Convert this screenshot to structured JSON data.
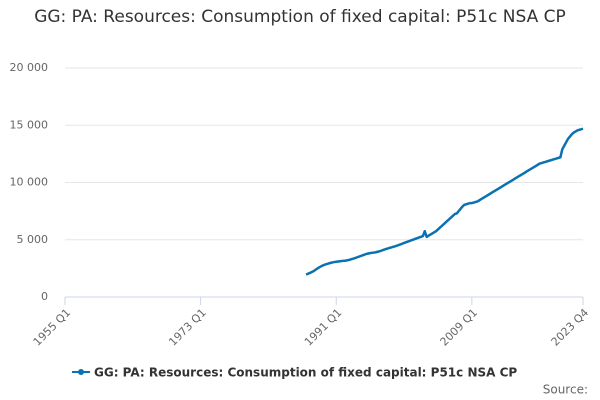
{
  "chart_data": {
    "type": "line",
    "title": "GG: PA: Resources: Consumption of fixed capital: P51c NSA CP",
    "source": "Source:",
    "x": [
      "1987 Q1",
      "1987 Q2",
      "1987 Q3",
      "1987 Q4",
      "1988 Q1",
      "1988 Q2",
      "1988 Q3",
      "1988 Q4",
      "1989 Q1",
      "1989 Q2",
      "1989 Q3",
      "1989 Q4",
      "1990 Q1",
      "1990 Q2",
      "1990 Q3",
      "1990 Q4",
      "1991 Q1",
      "1991 Q2",
      "1991 Q3",
      "1991 Q4",
      "1992 Q1",
      "1992 Q2",
      "1992 Q3",
      "1992 Q4",
      "1993 Q1",
      "1993 Q2",
      "1993 Q3",
      "1993 Q4",
      "1994 Q1",
      "1994 Q2",
      "1994 Q3",
      "1994 Q4",
      "1995 Q1",
      "1995 Q2",
      "1995 Q3",
      "1995 Q4",
      "1996 Q1",
      "1996 Q2",
      "1996 Q3",
      "1996 Q4",
      "1997 Q1",
      "1997 Q2",
      "1997 Q3",
      "1997 Q4",
      "1998 Q1",
      "1998 Q2",
      "1998 Q3",
      "1998 Q4",
      "1999 Q1",
      "1999 Q2",
      "1999 Q3",
      "1999 Q4",
      "2000 Q1",
      "2000 Q2",
      "2000 Q3",
      "2000 Q4",
      "2001 Q1",
      "2001 Q2",
      "2001 Q3",
      "2001 Q4",
      "2002 Q1",
      "2002 Q2",
      "2002 Q3",
      "2002 Q4",
      "2003 Q1",
      "2003 Q2",
      "2003 Q3",
      "2003 Q4",
      "2004 Q1",
      "2004 Q2",
      "2004 Q3",
      "2004 Q4",
      "2005 Q1",
      "2005 Q2",
      "2005 Q3",
      "2005 Q4",
      "2006 Q1",
      "2006 Q2",
      "2006 Q3",
      "2006 Q4",
      "2007 Q1",
      "2007 Q2",
      "2007 Q3",
      "2007 Q4",
      "2008 Q1",
      "2008 Q2",
      "2008 Q3",
      "2008 Q4",
      "2009 Q1",
      "2009 Q2",
      "2009 Q3",
      "2009 Q4",
      "2010 Q1",
      "2010 Q2",
      "2010 Q3",
      "2010 Q4",
      "2011 Q1",
      "2011 Q2",
      "2011 Q3",
      "2011 Q4",
      "2012 Q1",
      "2012 Q2",
      "2012 Q3",
      "2012 Q4",
      "2013 Q1",
      "2013 Q2",
      "2013 Q3",
      "2013 Q4",
      "2014 Q1",
      "2014 Q2",
      "2014 Q3",
      "2014 Q4",
      "2015 Q1",
      "2015 Q2",
      "2015 Q3",
      "2015 Q4",
      "2016 Q1",
      "2016 Q2",
      "2016 Q3",
      "2016 Q4",
      "2017 Q1",
      "2017 Q2",
      "2017 Q3",
      "2017 Q4",
      "2018 Q1",
      "2018 Q2",
      "2018 Q3",
      "2018 Q4",
      "2019 Q1",
      "2019 Q2",
      "2019 Q3",
      "2019 Q4",
      "2020 Q1",
      "2020 Q2",
      "2020 Q3",
      "2020 Q4",
      "2021 Q1",
      "2021 Q2",
      "2021 Q3",
      "2021 Q4",
      "2022 Q1",
      "2022 Q2",
      "2022 Q3",
      "2022 Q4",
      "2023 Q1",
      "2023 Q2",
      "2023 Q3",
      "2023 Q4"
    ],
    "series": [
      {
        "name": "GG: PA: Resources: Consumption of fixed capital: P51c NSA CP",
        "color": "#0a72b0",
        "values": [
          1950,
          2030,
          2100,
          2180,
          2260,
          2380,
          2490,
          2590,
          2680,
          2760,
          2830,
          2880,
          2930,
          2980,
          3020,
          3050,
          3080,
          3100,
          3120,
          3140,
          3160,
          3180,
          3210,
          3250,
          3300,
          3350,
          3400,
          3460,
          3520,
          3580,
          3640,
          3700,
          3760,
          3800,
          3830,
          3860,
          3880,
          3910,
          3950,
          3990,
          4050,
          4110,
          4170,
          4220,
          4270,
          4320,
          4370,
          4420,
          4470,
          4530,
          4590,
          4650,
          4720,
          4780,
          4840,
          4900,
          4960,
          5020,
          5080,
          5140,
          5200,
          5260,
          5320,
          5750,
          5250,
          5350,
          5450,
          5550,
          5650,
          5750,
          5900,
          6050,
          6200,
          6350,
          6500,
          6650,
          6800,
          6950,
          7100,
          7250,
          7300,
          7500,
          7700,
          7900,
          8050,
          8100,
          8150,
          8200,
          8200,
          8250,
          8300,
          8350,
          8450,
          8550,
          8650,
          8750,
          8850,
          8950,
          9050,
          9150,
          9250,
          9350,
          9450,
          9550,
          9650,
          9750,
          9850,
          9950,
          10050,
          10150,
          10250,
          10350,
          10450,
          10550,
          10650,
          10750,
          10850,
          10950,
          11050,
          11150,
          11250,
          11350,
          11450,
          11550,
          11650,
          11700,
          11750,
          11800,
          11850,
          11900,
          11950,
          12000,
          12050,
          12100,
          12150,
          12200,
          12900,
          13200,
          13500,
          13800,
          14000,
          14200,
          14350,
          14450,
          14550,
          14600,
          14650,
          14700
        ]
      }
    ],
    "xlim": [
      "1955 Q1",
      "2023 Q4"
    ],
    "xticks": [
      "1955 Q1",
      "1973 Q1",
      "1991 Q1",
      "2009 Q1",
      "2023 Q4"
    ],
    "ylim": [
      0,
      20000
    ],
    "yticks": [
      0,
      {
        "value": 5000,
        "label": "5 000"
      },
      {
        "value": 10000,
        "label": "10 000"
      },
      {
        "value": 15000,
        "label": "15 000"
      },
      {
        "value": 20000,
        "label": "20 000"
      }
    ],
    "grid": true
  }
}
